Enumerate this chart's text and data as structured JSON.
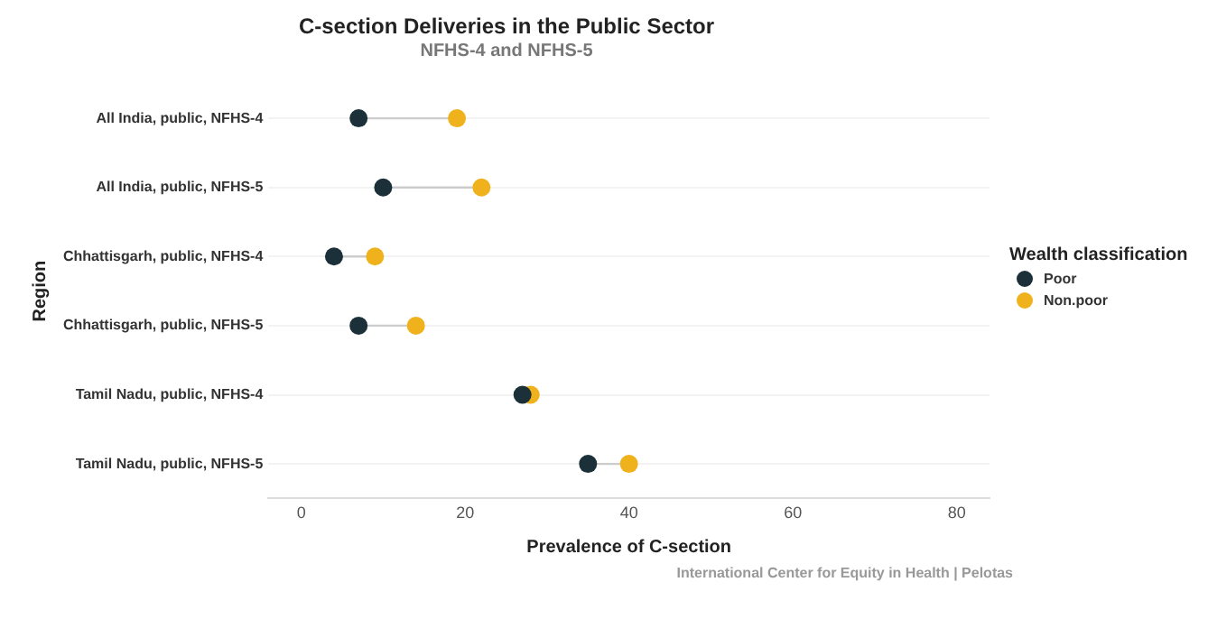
{
  "chart_data": {
    "type": "scatter",
    "orientation": "horizontal",
    "title": "C-section Deliveries in the Public Sector",
    "subtitle": "NFHS-4 and NFHS-5",
    "xlabel": "Prevalence of C-section",
    "ylabel": "Region",
    "legend_title": "Wealth classification",
    "categories": [
      "All India, public, NFHS-4",
      "All India, public, NFHS-5",
      "Chhattisgarh, public, NFHS-4",
      "Chhattisgarh, public, NFHS-5",
      "Tamil Nadu, public, NFHS-4",
      "Tamil Nadu, public, NFHS-5"
    ],
    "series": [
      {
        "name": "Poor",
        "color": "#1b3038",
        "values": [
          7,
          10,
          4,
          7,
          27,
          35
        ]
      },
      {
        "name": "Non.poor",
        "color": "#f0b21c",
        "values": [
          19,
          22,
          9,
          14,
          28,
          40
        ]
      }
    ],
    "xlim": [
      -4,
      84
    ],
    "xticks": [
      0,
      20,
      40,
      60,
      80
    ],
    "grid": "y",
    "legend": "right",
    "marker": "circle",
    "annotations": [
      "International Center for Equity in Health | Pelotas"
    ]
  }
}
